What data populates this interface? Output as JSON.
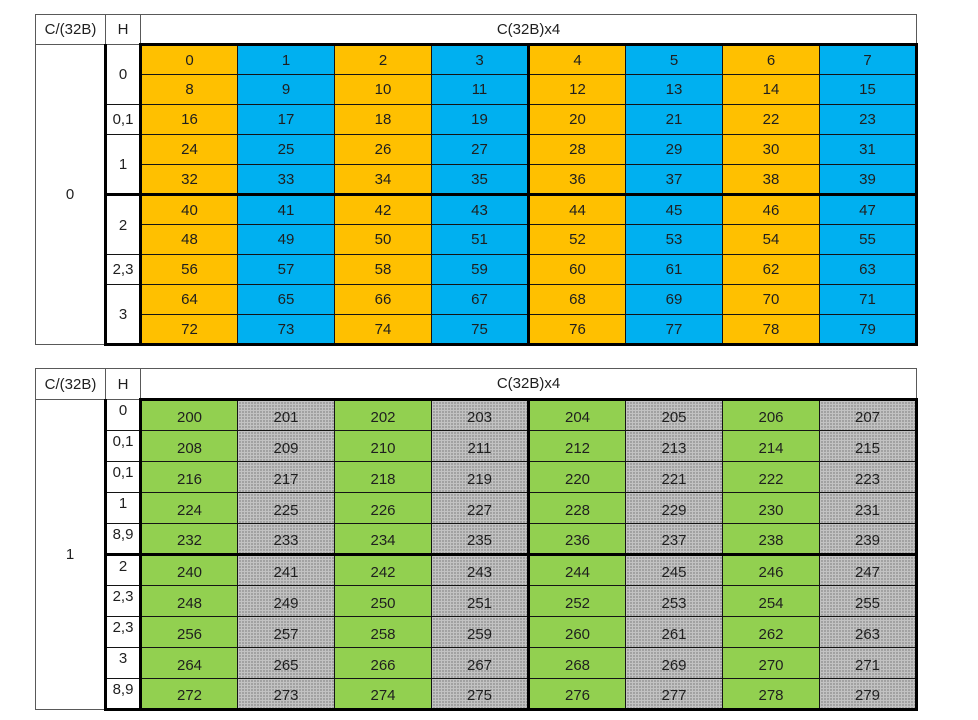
{
  "colors": {
    "orange": "#FFC000",
    "cyan": "#00B0F0",
    "green": "#92D050",
    "gray": "#C2C2C2",
    "text": "#1F1F1F"
  },
  "tables": [
    {
      "header": {
        "c_label": "C/(32B)",
        "h_label": "H",
        "span_label": "C(32B)x4"
      },
      "c_value": "0",
      "palette": [
        "orange",
        "cyan"
      ],
      "h_groups": [
        {
          "label": "0",
          "span": 2
        },
        {
          "label": "0,1",
          "span": 1
        },
        {
          "label": "1",
          "span": 2
        },
        {
          "label": "2",
          "span": 2
        },
        {
          "label": "2,3",
          "span": 1
        },
        {
          "label": "3",
          "span": 2
        }
      ],
      "rows": [
        [
          0,
          1,
          2,
          3,
          4,
          5,
          6,
          7
        ],
        [
          8,
          9,
          10,
          11,
          12,
          13,
          14,
          15
        ],
        [
          16,
          17,
          18,
          19,
          20,
          21,
          22,
          23
        ],
        [
          24,
          25,
          26,
          27,
          28,
          29,
          30,
          31
        ],
        [
          32,
          33,
          34,
          35,
          36,
          37,
          38,
          39
        ],
        [
          40,
          41,
          42,
          43,
          44,
          45,
          46,
          47
        ],
        [
          48,
          49,
          50,
          51,
          52,
          53,
          54,
          55
        ],
        [
          56,
          57,
          58,
          59,
          60,
          61,
          62,
          63
        ],
        [
          64,
          65,
          66,
          67,
          68,
          69,
          70,
          71
        ],
        [
          72,
          73,
          74,
          75,
          76,
          77,
          78,
          79
        ]
      ]
    },
    {
      "header": {
        "c_label": "C/(32B)",
        "h_label": "H",
        "span_label": "C(32B)x4"
      },
      "c_value": "1",
      "palette": [
        "green",
        "gray"
      ],
      "h_groups": [
        {
          "label": "0",
          "span": 1
        },
        {
          "label": "0,1",
          "span": 1
        },
        {
          "label": "0,1",
          "span": 1
        },
        {
          "label": "1",
          "span": 1
        },
        {
          "label": "8,9",
          "span": 1
        },
        {
          "label": "2",
          "span": 1
        },
        {
          "label": "2,3",
          "span": 1
        },
        {
          "label": "2,3",
          "span": 1
        },
        {
          "label": "3",
          "span": 1
        },
        {
          "label": "8,9",
          "span": 1
        }
      ],
      "rows": [
        [
          200,
          201,
          202,
          203,
          204,
          205,
          206,
          207
        ],
        [
          208,
          209,
          210,
          211,
          212,
          213,
          214,
          215
        ],
        [
          216,
          217,
          218,
          219,
          220,
          221,
          222,
          223
        ],
        [
          224,
          225,
          226,
          227,
          228,
          229,
          230,
          231
        ],
        [
          232,
          233,
          234,
          235,
          236,
          237,
          238,
          239
        ],
        [
          240,
          241,
          242,
          243,
          244,
          245,
          246,
          247
        ],
        [
          248,
          249,
          250,
          251,
          252,
          253,
          254,
          255
        ],
        [
          256,
          257,
          258,
          259,
          260,
          261,
          262,
          263
        ],
        [
          264,
          265,
          266,
          267,
          268,
          269,
          270,
          271
        ],
        [
          272,
          273,
          274,
          275,
          276,
          277,
          278,
          279
        ]
      ]
    }
  ]
}
